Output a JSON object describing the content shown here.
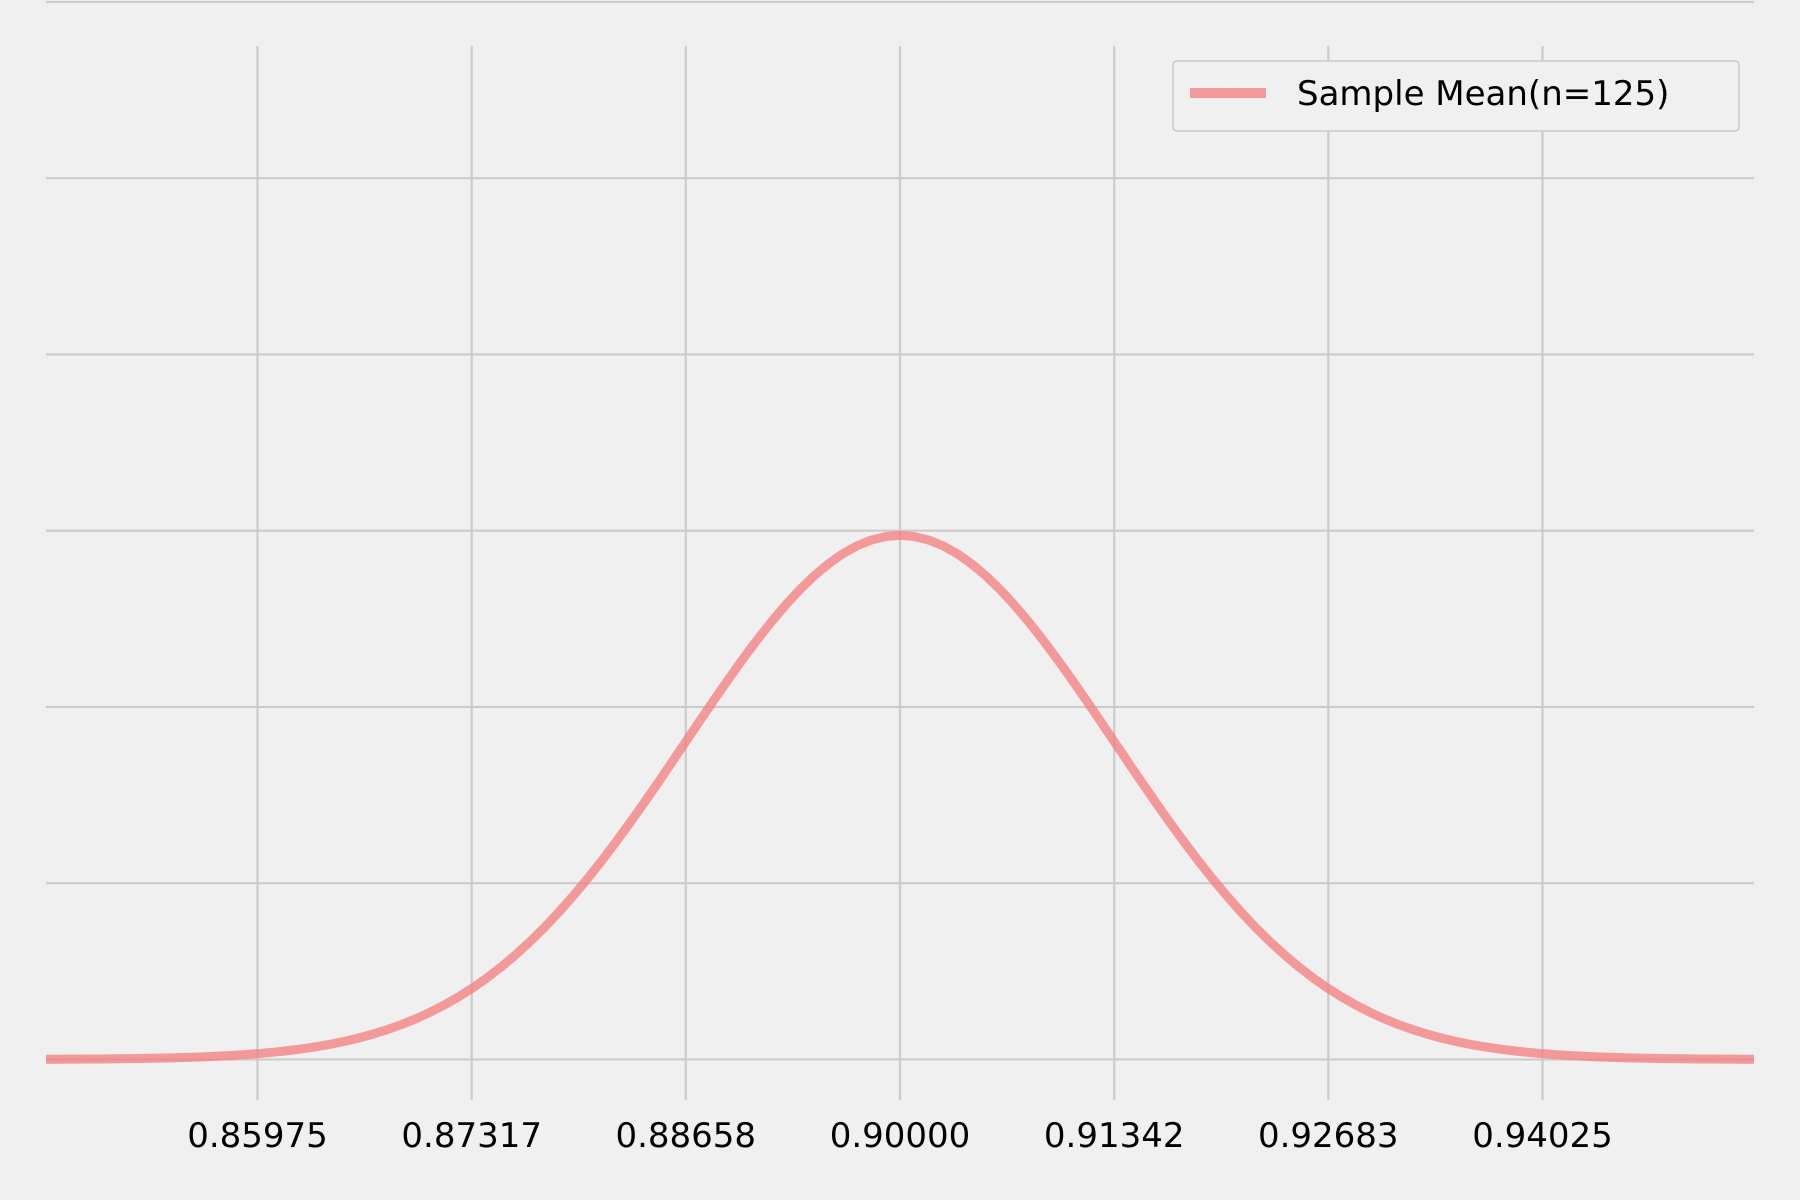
{
  "chart_data": {
    "type": "line",
    "title": "",
    "xlabel": "",
    "ylabel": "",
    "xlim": [
      0.8465,
      0.9535
    ],
    "ylim": [
      -2.3,
      57.5
    ],
    "x_ticks": [
      "0.85975",
      "0.87317",
      "0.88658",
      "0.90000",
      "0.91342",
      "0.92683",
      "0.94025"
    ],
    "x_tick_values": [
      0.85975,
      0.87317,
      0.88658,
      0.9,
      0.91342,
      0.92683,
      0.94025
    ],
    "y_grid_values": [
      0,
      10,
      20,
      30,
      40,
      50,
      60
    ],
    "y_tick_labels_visible": false,
    "grid": true,
    "legend": {
      "position": "top-right",
      "entries": [
        "Sample Mean(n=125)"
      ]
    },
    "series": [
      {
        "name": "Sample Mean(n=125)",
        "color": "#f47c7c",
        "opacity": 0.75,
        "distribution": "normal",
        "mean": 0.9,
        "std": 0.013416,
        "x_range": [
          0.8465,
          0.9535
        ],
        "peak_y": 29.74
      }
    ]
  }
}
